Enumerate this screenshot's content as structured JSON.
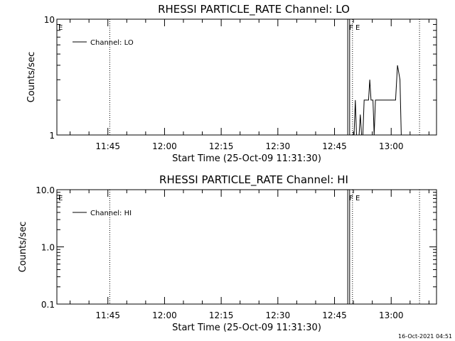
{
  "footer": {
    "timestamp": "16-Oct-2021 04:51"
  },
  "chart_data": [
    {
      "type": "line",
      "title": "RHESSI PARTICLE_RATE Channel: LO",
      "xlabel": "Start Time (25-Oct-09 11:31:30)",
      "ylabel": "Counts/sec",
      "yscale": "log",
      "ylim": [
        1,
        10
      ],
      "y_ticks": [
        1,
        10
      ],
      "y_tick_labels": [
        "1",
        "10"
      ],
      "xlim": [
        "11:31:30",
        "13:12:00"
      ],
      "x_ticks": [
        "11:45",
        "12:00",
        "12:15",
        "12:30",
        "12:45",
        "13:00"
      ],
      "legend": {
        "position": "top-left",
        "entries": [
          "Channel: LO"
        ]
      },
      "vlines": [
        {
          "time": "11:45:30",
          "style": "dotted"
        },
        {
          "time": "12:48:30",
          "style": "solid"
        },
        {
          "time": "12:49:00",
          "style": "solid"
        },
        {
          "time": "12:49:45",
          "style": "dotted"
        },
        {
          "time": "13:07:30",
          "style": "dotted"
        }
      ],
      "markers": [
        {
          "label": "E",
          "time": "11:31:30"
        },
        {
          "label": "F",
          "time": "12:48:30"
        },
        {
          "label": "E",
          "time": "12:50:10"
        }
      ],
      "series": [
        {
          "name": "Channel: LO",
          "x": [
            "12:49:50",
            "12:50:10",
            "12:50:30",
            "12:50:50",
            "12:51:30",
            "12:51:50",
            "12:52:10",
            "12:52:30",
            "12:52:50",
            "12:54:00",
            "12:54:20",
            "12:54:40",
            "12:55:10",
            "12:55:30",
            "12:55:50",
            "12:57:00",
            "12:58:00",
            "12:59:00",
            "13:00:00",
            "13:01:10",
            "13:01:40",
            "13:02:20",
            "13:02:40",
            "13:02:55"
          ],
          "y": [
            1,
            1,
            2,
            1,
            1,
            1.5,
            1,
            1,
            2,
            2,
            3,
            2,
            2,
            1,
            2,
            2,
            2,
            2,
            2,
            2,
            4,
            3,
            1,
            1
          ]
        }
      ]
    },
    {
      "type": "line",
      "title": "RHESSI PARTICLE_RATE Channel: HI",
      "xlabel": "Start Time (25-Oct-09 11:31:30)",
      "ylabel": "Counts/sec",
      "yscale": "log",
      "ylim": [
        0.1,
        10
      ],
      "y_ticks": [
        0.1,
        1,
        10
      ],
      "y_tick_labels": [
        "0.1",
        "1.0",
        "10.0"
      ],
      "xlim": [
        "11:31:30",
        "13:12:00"
      ],
      "x_ticks": [
        "11:45",
        "12:00",
        "12:15",
        "12:30",
        "12:45",
        "13:00"
      ],
      "legend": {
        "position": "top-left",
        "entries": [
          "Channel: HI"
        ]
      },
      "vlines": [
        {
          "time": "11:45:30",
          "style": "dotted"
        },
        {
          "time": "12:48:30",
          "style": "solid"
        },
        {
          "time": "12:49:00",
          "style": "solid"
        },
        {
          "time": "12:49:45",
          "style": "dotted"
        },
        {
          "time": "13:07:30",
          "style": "dotted"
        }
      ],
      "markers": [
        {
          "label": "E",
          "time": "11:31:30"
        },
        {
          "label": "F",
          "time": "12:48:30"
        },
        {
          "label": "E",
          "time": "12:50:10"
        }
      ],
      "series": [
        {
          "name": "Channel: HI",
          "x": [],
          "y": []
        }
      ]
    }
  ]
}
